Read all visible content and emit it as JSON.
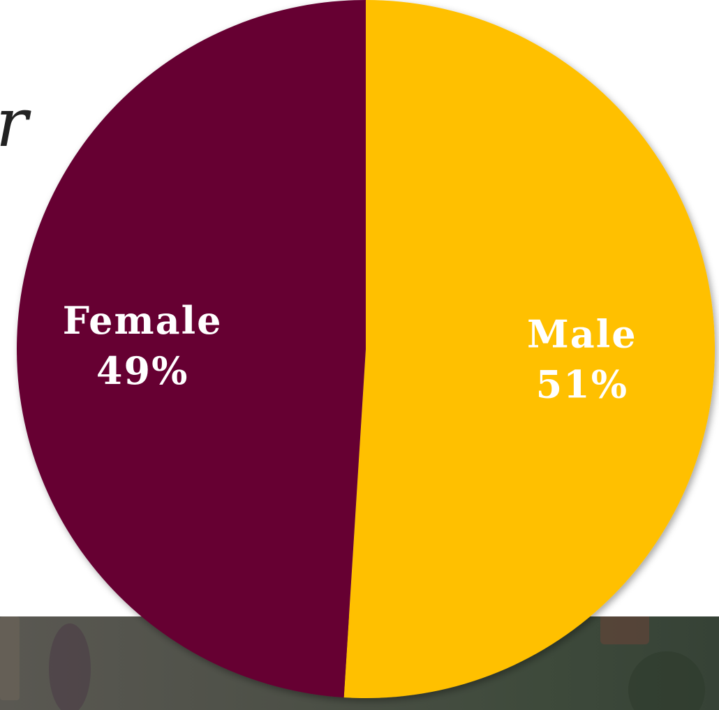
{
  "background": {
    "side_text": "r"
  },
  "chart_data": {
    "type": "pie",
    "slices": [
      {
        "label": "Male",
        "value": 51,
        "display": "51%",
        "color": "#FFC000"
      },
      {
        "label": "Female",
        "value": 49,
        "display": "49%",
        "color": "#660033"
      }
    ],
    "start_angle_deg": 0,
    "direction": "clockwise",
    "title": "",
    "legend": "none"
  }
}
